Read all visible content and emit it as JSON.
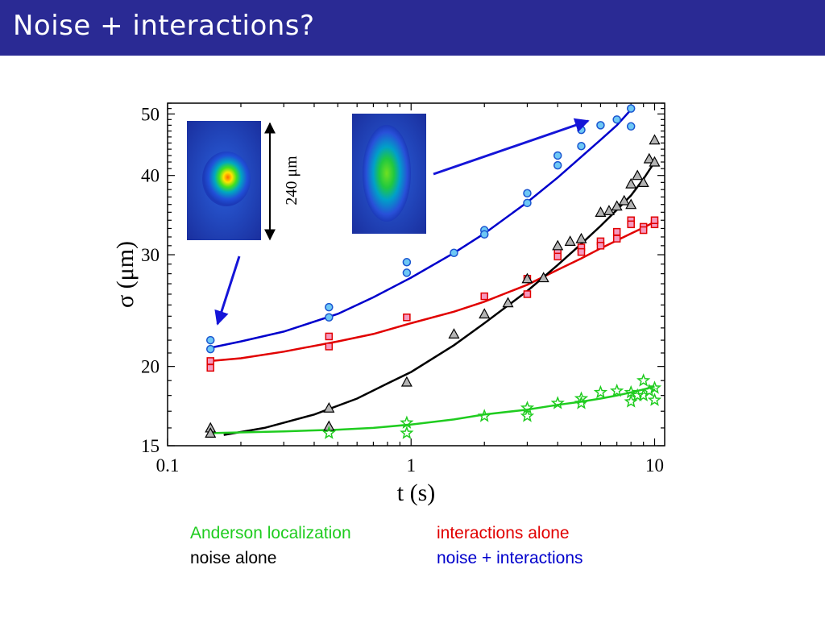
{
  "slide": {
    "title": "Noise + interactions?"
  },
  "legend": {
    "green": {
      "label": "Anderson localization",
      "color": "#1fcc1f"
    },
    "red": {
      "label": "interactions alone",
      "color": "#e10000"
    },
    "black": {
      "label": "noise alone",
      "color": "#000000"
    },
    "blue": {
      "label": "noise + interactions",
      "color": "#0000cc"
    }
  },
  "images": {
    "scale_label": "240 μm"
  },
  "chart_data": {
    "type": "scatter",
    "xlabel": "t (s)",
    "ylabel": "σ (μm)",
    "xscale": "log",
    "yscale": "log",
    "xlim": [
      0.1,
      11
    ],
    "ylim": [
      15,
      52
    ],
    "xticks": [
      0.1,
      1,
      10
    ],
    "xtick_labels": [
      "0.1",
      "1",
      "10"
    ],
    "yticks": [
      15,
      20,
      30,
      40,
      50
    ],
    "ytick_labels": [
      "15",
      "20",
      "30",
      "40",
      "50"
    ],
    "grid": false,
    "series": [
      {
        "name": "noise + interactions",
        "color": "#0000cc",
        "marker": "circle",
        "points": [
          [
            0.15,
            22.0
          ],
          [
            0.15,
            21.3
          ],
          [
            0.46,
            24.8
          ],
          [
            0.46,
            23.9
          ],
          [
            0.96,
            29.2
          ],
          [
            0.96,
            28.1
          ],
          [
            1.5,
            30.2
          ],
          [
            2.0,
            32.8
          ],
          [
            2.0,
            32.3
          ],
          [
            3.0,
            37.5
          ],
          [
            3.0,
            36.2
          ],
          [
            4.0,
            43.0
          ],
          [
            4.0,
            41.5
          ],
          [
            5.0,
            47.2
          ],
          [
            5.0,
            44.5
          ],
          [
            6.0,
            48.0
          ],
          [
            7.0,
            49.0
          ],
          [
            8.0,
            51.0
          ],
          [
            8.0,
            47.8
          ]
        ],
        "fit": [
          [
            0.15,
            21.4
          ],
          [
            0.2,
            21.9
          ],
          [
            0.3,
            22.7
          ],
          [
            0.5,
            24.2
          ],
          [
            0.7,
            25.7
          ],
          [
            1.0,
            27.6
          ],
          [
            1.5,
            30.2
          ],
          [
            2.0,
            32.4
          ],
          [
            3.0,
            36.3
          ],
          [
            4.0,
            39.7
          ],
          [
            5.0,
            42.8
          ],
          [
            6.0,
            45.5
          ],
          [
            7.0,
            48.0
          ],
          [
            8.0,
            50.8
          ]
        ]
      },
      {
        "name": "interactions alone",
        "color": "#e10000",
        "marker": "square",
        "points": [
          [
            0.15,
            20.4
          ],
          [
            0.15,
            19.9
          ],
          [
            0.46,
            22.3
          ],
          [
            0.46,
            21.5
          ],
          [
            0.96,
            23.9
          ],
          [
            2.0,
            25.8
          ],
          [
            3.0,
            27.5
          ],
          [
            3.0,
            26.0
          ],
          [
            4.0,
            30.3
          ],
          [
            4.0,
            29.8
          ],
          [
            5.0,
            30.8
          ],
          [
            5.0,
            30.3
          ],
          [
            6.0,
            31.5
          ],
          [
            6.0,
            31.0
          ],
          [
            7.0,
            32.6
          ],
          [
            7.0,
            31.8
          ],
          [
            8.0,
            34.0
          ],
          [
            8.0,
            33.5
          ],
          [
            9.0,
            33.2
          ],
          [
            9.0,
            32.8
          ],
          [
            10.0,
            33.5
          ],
          [
            10.0,
            34.0
          ]
        ],
        "fit": [
          [
            0.15,
            20.4
          ],
          [
            0.2,
            20.6
          ],
          [
            0.3,
            21.1
          ],
          [
            0.5,
            21.9
          ],
          [
            0.7,
            22.5
          ],
          [
            1.0,
            23.4
          ],
          [
            1.5,
            24.4
          ],
          [
            2.0,
            25.3
          ],
          [
            3.0,
            26.9
          ],
          [
            4.0,
            28.4
          ],
          [
            5.0,
            29.6
          ],
          [
            6.0,
            30.7
          ],
          [
            7.0,
            31.6
          ],
          [
            8.0,
            32.4
          ],
          [
            9.0,
            33.1
          ],
          [
            10.0,
            33.8
          ]
        ]
      },
      {
        "name": "noise alone",
        "color": "#000000",
        "marker": "triangle",
        "points": [
          [
            0.15,
            16.0
          ],
          [
            0.15,
            15.7
          ],
          [
            0.46,
            17.2
          ],
          [
            0.46,
            16.1
          ],
          [
            0.96,
            18.9
          ],
          [
            1.5,
            22.5
          ],
          [
            2.0,
            24.2
          ],
          [
            2.5,
            25.2
          ],
          [
            3.0,
            27.5
          ],
          [
            3.5,
            27.6
          ],
          [
            4.0,
            31.0
          ],
          [
            4.5,
            31.5
          ],
          [
            5.0,
            31.8
          ],
          [
            6.0,
            35.0
          ],
          [
            6.5,
            35.2
          ],
          [
            7.0,
            35.8
          ],
          [
            7.5,
            36.5
          ],
          [
            8.0,
            38.8
          ],
          [
            8.0,
            36.0
          ],
          [
            8.5,
            40.0
          ],
          [
            9.0,
            39.0
          ],
          [
            9.5,
            42.5
          ],
          [
            10.0,
            45.5
          ],
          [
            10.0,
            42.0
          ]
        ],
        "fit": [
          [
            0.17,
            15.6
          ],
          [
            0.25,
            16.0
          ],
          [
            0.4,
            16.8
          ],
          [
            0.6,
            17.8
          ],
          [
            0.8,
            18.8
          ],
          [
            1.0,
            19.6
          ],
          [
            1.5,
            21.6
          ],
          [
            2.0,
            23.4
          ],
          [
            3.0,
            26.3
          ],
          [
            4.0,
            28.9
          ],
          [
            5.0,
            31.2
          ],
          [
            6.0,
            33.3
          ],
          [
            7.0,
            35.3
          ],
          [
            8.0,
            37.2
          ],
          [
            9.0,
            39.5
          ],
          [
            10.0,
            42.0
          ]
        ]
      },
      {
        "name": "Anderson localization",
        "color": "#1fcc1f",
        "marker": "star",
        "points": [
          [
            0.46,
            15.7
          ],
          [
            0.96,
            16.3
          ],
          [
            0.96,
            15.7
          ],
          [
            2.0,
            16.7
          ],
          [
            3.0,
            17.2
          ],
          [
            3.0,
            16.7
          ],
          [
            4.0,
            17.5
          ],
          [
            5.0,
            17.8
          ],
          [
            5.0,
            17.5
          ],
          [
            6.0,
            18.2
          ],
          [
            7.0,
            18.3
          ],
          [
            8.0,
            18.2
          ],
          [
            8.0,
            17.6
          ],
          [
            8.5,
            18.0
          ],
          [
            9.0,
            19.0
          ],
          [
            9.0,
            18.0
          ],
          [
            9.5,
            18.3
          ],
          [
            10.0,
            18.5
          ],
          [
            10.0,
            17.7
          ]
        ],
        "fit": [
          [
            0.15,
            15.7
          ],
          [
            0.3,
            15.8
          ],
          [
            0.5,
            15.9
          ],
          [
            0.7,
            16.0
          ],
          [
            1.0,
            16.2
          ],
          [
            1.5,
            16.5
          ],
          [
            2.0,
            16.8
          ],
          [
            3.0,
            17.1
          ],
          [
            4.0,
            17.4
          ],
          [
            5.0,
            17.6
          ],
          [
            6.0,
            17.8
          ],
          [
            7.0,
            18.0
          ],
          [
            8.0,
            18.2
          ],
          [
            9.0,
            18.4
          ],
          [
            10.0,
            18.6
          ]
        ]
      }
    ]
  }
}
